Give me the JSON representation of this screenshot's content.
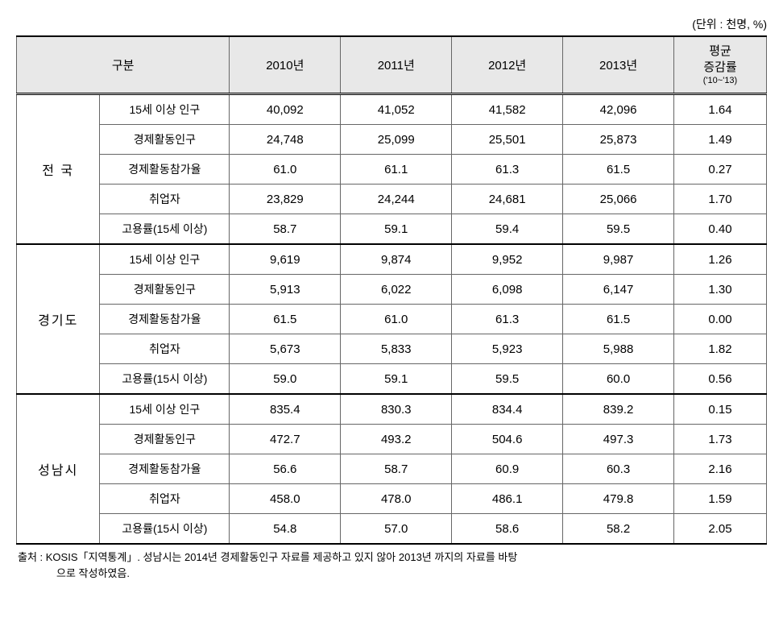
{
  "unit_label": "(단위 : 천명, %)",
  "headers": {
    "category": "구분",
    "y2010": "2010년",
    "y2011": "2011년",
    "y2012": "2012년",
    "y2013": "2013년",
    "avg_line1": "평균",
    "avg_line2": "증감률",
    "avg_sub": "('10~'13)"
  },
  "regions": [
    {
      "name": "전 국",
      "rows": [
        {
          "indicator": "15세 이상 인구",
          "v2010": "40,092",
          "v2011": "41,052",
          "v2012": "41,582",
          "v2013": "42,096",
          "avg": "1.64"
        },
        {
          "indicator": "경제활동인구",
          "v2010": "24,748",
          "v2011": "25,099",
          "v2012": "25,501",
          "v2013": "25,873",
          "avg": "1.49"
        },
        {
          "indicator": "경제활동참가율",
          "v2010": "61.0",
          "v2011": "61.1",
          "v2012": "61.3",
          "v2013": "61.5",
          "avg": "0.27"
        },
        {
          "indicator": "취업자",
          "v2010": "23,829",
          "v2011": "24,244",
          "v2012": "24,681",
          "v2013": "25,066",
          "avg": "1.70"
        },
        {
          "indicator": "고용률(15세 이상)",
          "v2010": "58.7",
          "v2011": "59.1",
          "v2012": "59.4",
          "v2013": "59.5",
          "avg": "0.40"
        }
      ]
    },
    {
      "name": "경기도",
      "rows": [
        {
          "indicator": "15세 이상 인구",
          "v2010": "9,619",
          "v2011": "9,874",
          "v2012": "9,952",
          "v2013": "9,987",
          "avg": "1.26"
        },
        {
          "indicator": "경제활동인구",
          "v2010": "5,913",
          "v2011": "6,022",
          "v2012": "6,098",
          "v2013": "6,147",
          "avg": "1.30"
        },
        {
          "indicator": "경제활동참가율",
          "v2010": "61.5",
          "v2011": "61.0",
          "v2012": "61.3",
          "v2013": "61.5",
          "avg": "0.00"
        },
        {
          "indicator": "취업자",
          "v2010": "5,673",
          "v2011": "5,833",
          "v2012": "5,923",
          "v2013": "5,988",
          "avg": "1.82"
        },
        {
          "indicator": "고용률(15시 이상)",
          "v2010": "59.0",
          "v2011": "59.1",
          "v2012": "59.5",
          "v2013": "60.0",
          "avg": "0.56"
        }
      ]
    },
    {
      "name": "성남시",
      "rows": [
        {
          "indicator": "15세 이상 인구",
          "v2010": "835.4",
          "v2011": "830.3",
          "v2012": "834.4",
          "v2013": "839.2",
          "avg": "0.15"
        },
        {
          "indicator": "경제활동인구",
          "v2010": "472.7",
          "v2011": "493.2",
          "v2012": "504.6",
          "v2013": "497.3",
          "avg": "1.73"
        },
        {
          "indicator": "경제활동참가율",
          "v2010": "56.6",
          "v2011": "58.7",
          "v2012": "60.9",
          "v2013": "60.3",
          "avg": "2.16"
        },
        {
          "indicator": "취업자",
          "v2010": "458.0",
          "v2011": "478.0",
          "v2012": "486.1",
          "v2013": "479.8",
          "avg": "1.59"
        },
        {
          "indicator": "고용률(15시 이상)",
          "v2010": "54.8",
          "v2011": "57.0",
          "v2012": "58.6",
          "v2013": "58.2",
          "avg": "2.05"
        }
      ]
    }
  ],
  "footnote_line1": "출처 : KOSIS「지역통계」. 성남시는 2014년 경제활동인구 자료를 제공하고 있지 않아 2013년 까지의 자료를 바탕",
  "footnote_line2": "으로 작성하였음."
}
